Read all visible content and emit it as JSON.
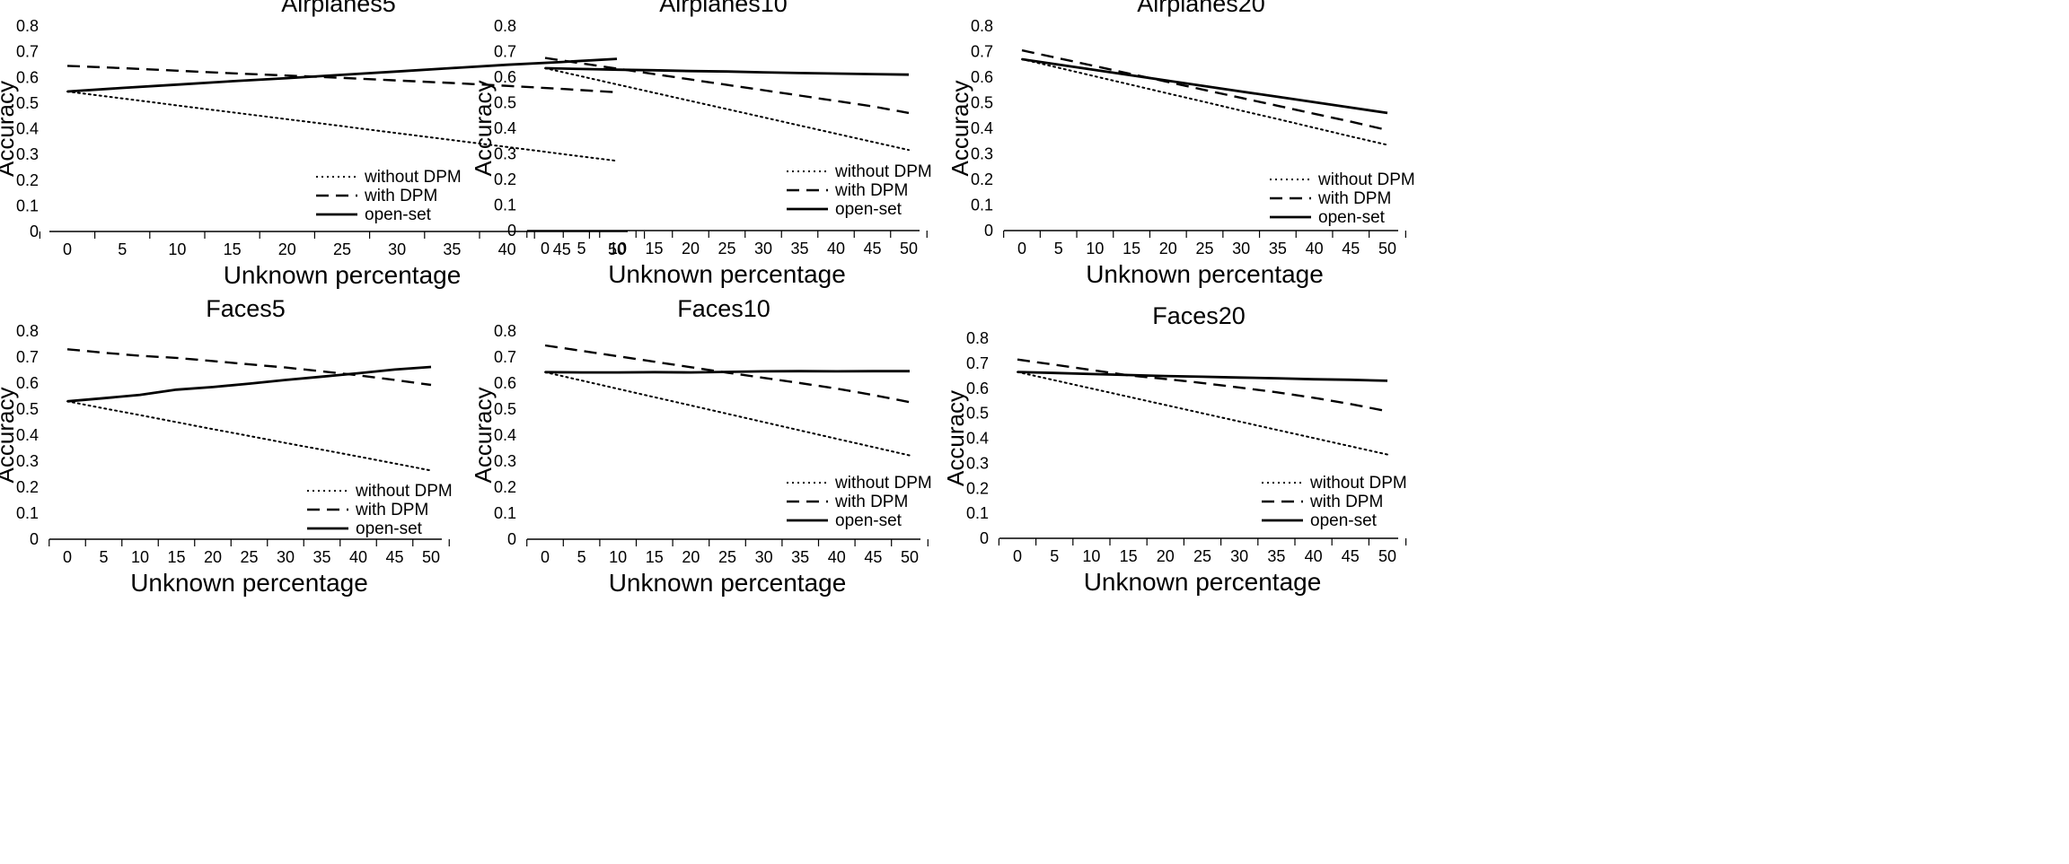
{
  "chart_data": [
    {
      "type": "line",
      "title": "Airplanes5",
      "xlabel": "Unknown percentage",
      "ylabel": "Accuracy",
      "x": [
        0,
        5,
        10,
        15,
        20,
        25,
        30,
        35,
        40,
        45,
        50
      ],
      "ylim": [
        0,
        0.8
      ],
      "yticks": [
        "0",
        "0.1",
        "0.2",
        "0.3",
        "0.4",
        "0.5",
        "0.6",
        "0.7",
        "0.8"
      ],
      "legend_position": "bottom-right",
      "series": [
        {
          "name": "without DPM",
          "style": "dotted",
          "values": [
            0.545,
            0.518,
            0.491,
            0.464,
            0.437,
            0.41,
            0.383,
            0.356,
            0.329,
            0.302,
            0.275
          ]
        },
        {
          "name": "with DPM",
          "style": "dashed",
          "values": [
            0.645,
            0.636,
            0.626,
            0.616,
            0.607,
            0.598,
            0.588,
            0.578,
            0.567,
            0.555,
            0.542
          ]
        },
        {
          "name": "open-set",
          "style": "solid",
          "values": [
            0.545,
            0.559,
            0.572,
            0.585,
            0.597,
            0.61,
            0.623,
            0.636,
            0.649,
            0.66,
            0.672
          ]
        }
      ]
    },
    {
      "type": "line",
      "title": "Airplanes10",
      "xlabel": "Unknown percentage",
      "ylabel": "Accuracy",
      "x": [
        0,
        5,
        10,
        15,
        20,
        25,
        30,
        35,
        40,
        45,
        50
      ],
      "ylim": [
        0,
        0.8
      ],
      "yticks": [
        "0",
        "0.1",
        "0.2",
        "0.3",
        "0.4",
        "0.5",
        "0.6",
        "0.7",
        "0.8"
      ],
      "legend_position": "bottom-right",
      "series": [
        {
          "name": "without DPM",
          "style": "dotted",
          "values": [
            0.635,
            0.603,
            0.571,
            0.539,
            0.507,
            0.475,
            0.443,
            0.411,
            0.379,
            0.347,
            0.315
          ]
        },
        {
          "name": "with DPM",
          "style": "dashed",
          "values": [
            0.675,
            0.654,
            0.633,
            0.612,
            0.591,
            0.57,
            0.549,
            0.528,
            0.507,
            0.486,
            0.46
          ]
        },
        {
          "name": "open-set",
          "style": "solid",
          "values": [
            0.635,
            0.632,
            0.629,
            0.627,
            0.624,
            0.622,
            0.619,
            0.616,
            0.614,
            0.612,
            0.61
          ]
        }
      ]
    },
    {
      "type": "line",
      "title": "Airplanes20",
      "xlabel": "Unknown percentage",
      "ylabel": "Accuracy",
      "x": [
        0,
        5,
        10,
        15,
        20,
        25,
        30,
        35,
        40,
        45,
        50
      ],
      "ylim": [
        0,
        0.8
      ],
      "yticks": [
        "0",
        "0.1",
        "0.2",
        "0.3",
        "0.4",
        "0.5",
        "0.6",
        "0.7",
        "0.8"
      ],
      "legend_position": "bottom-right",
      "series": [
        {
          "name": "without DPM",
          "style": "dotted",
          "values": [
            0.67,
            0.637,
            0.603,
            0.57,
            0.536,
            0.503,
            0.469,
            0.436,
            0.402,
            0.368,
            0.335
          ]
        },
        {
          "name": "with DPM",
          "style": "dashed",
          "values": [
            0.705,
            0.674,
            0.643,
            0.612,
            0.581,
            0.55,
            0.519,
            0.488,
            0.457,
            0.426,
            0.393
          ]
        },
        {
          "name": "open-set",
          "style": "solid",
          "values": [
            0.67,
            0.649,
            0.628,
            0.607,
            0.586,
            0.565,
            0.544,
            0.523,
            0.502,
            0.481,
            0.46
          ]
        }
      ]
    },
    {
      "type": "line",
      "title": "Faces5",
      "xlabel": "Unknown percentage",
      "ylabel": "Accuracy",
      "x": [
        0,
        5,
        10,
        15,
        20,
        25,
        30,
        35,
        40,
        45,
        50
      ],
      "ylim": [
        0,
        0.8
      ],
      "yticks": [
        "0",
        "0.1",
        "0.2",
        "0.3",
        "0.4",
        "0.5",
        "0.6",
        "0.7",
        "0.8"
      ],
      "legend_position": "bottom-right",
      "series": [
        {
          "name": "without DPM",
          "style": "dotted",
          "values": [
            0.53,
            0.503,
            0.477,
            0.45,
            0.423,
            0.397,
            0.37,
            0.344,
            0.318,
            0.291,
            0.264
          ]
        },
        {
          "name": "with DPM",
          "style": "dashed",
          "values": [
            0.73,
            0.717,
            0.705,
            0.697,
            0.685,
            0.672,
            0.66,
            0.645,
            0.63,
            0.612,
            0.593
          ]
        },
        {
          "name": "open-set",
          "style": "solid",
          "values": [
            0.53,
            0.542,
            0.555,
            0.575,
            0.585,
            0.598,
            0.612,
            0.625,
            0.638,
            0.652,
            0.662
          ]
        }
      ]
    },
    {
      "type": "line",
      "title": "Faces10",
      "xlabel": "Unknown percentage",
      "ylabel": "Accuracy",
      "x": [
        0,
        5,
        10,
        15,
        20,
        25,
        30,
        35,
        40,
        45,
        50
      ],
      "ylim": [
        0,
        0.8
      ],
      "yticks": [
        "0",
        "0.1",
        "0.2",
        "0.3",
        "0.4",
        "0.5",
        "0.6",
        "0.7",
        "0.8"
      ],
      "legend_position": "bottom-right",
      "series": [
        {
          "name": "without DPM",
          "style": "dotted",
          "values": [
            0.642,
            0.61,
            0.578,
            0.546,
            0.514,
            0.482,
            0.45,
            0.418,
            0.386,
            0.354,
            0.322
          ]
        },
        {
          "name": "with DPM",
          "style": "dashed",
          "values": [
            0.745,
            0.724,
            0.703,
            0.682,
            0.661,
            0.64,
            0.62,
            0.6,
            0.579,
            0.554,
            0.527
          ]
        },
        {
          "name": "open-set",
          "style": "solid",
          "values": [
            0.642,
            0.641,
            0.641,
            0.642,
            0.641,
            0.643,
            0.645,
            0.646,
            0.645,
            0.646,
            0.646
          ]
        }
      ]
    },
    {
      "type": "line",
      "title": "Faces20",
      "xlabel": "Unknown percentage",
      "ylabel": "Accuracy",
      "x": [
        0,
        5,
        10,
        15,
        20,
        25,
        30,
        35,
        40,
        45,
        50
      ],
      "ylim": [
        0,
        0.8
      ],
      "yticks": [
        "0",
        "0.1",
        "0.2",
        "0.3",
        "0.4",
        "0.5",
        "0.6",
        "0.7",
        "0.8"
      ],
      "legend_position": "bottom-right",
      "series": [
        {
          "name": "without DPM",
          "style": "dotted",
          "values": [
            0.665,
            0.632,
            0.599,
            0.566,
            0.533,
            0.5,
            0.467,
            0.434,
            0.401,
            0.368,
            0.335
          ]
        },
        {
          "name": "with DPM",
          "style": "dashed",
          "values": [
            0.715,
            0.694,
            0.673,
            0.652,
            0.637,
            0.621,
            0.603,
            0.584,
            0.562,
            0.537,
            0.508
          ]
        },
        {
          "name": "open-set",
          "style": "solid",
          "values": [
            0.665,
            0.661,
            0.657,
            0.653,
            0.649,
            0.646,
            0.643,
            0.64,
            0.636,
            0.634,
            0.63
          ]
        }
      ]
    }
  ]
}
